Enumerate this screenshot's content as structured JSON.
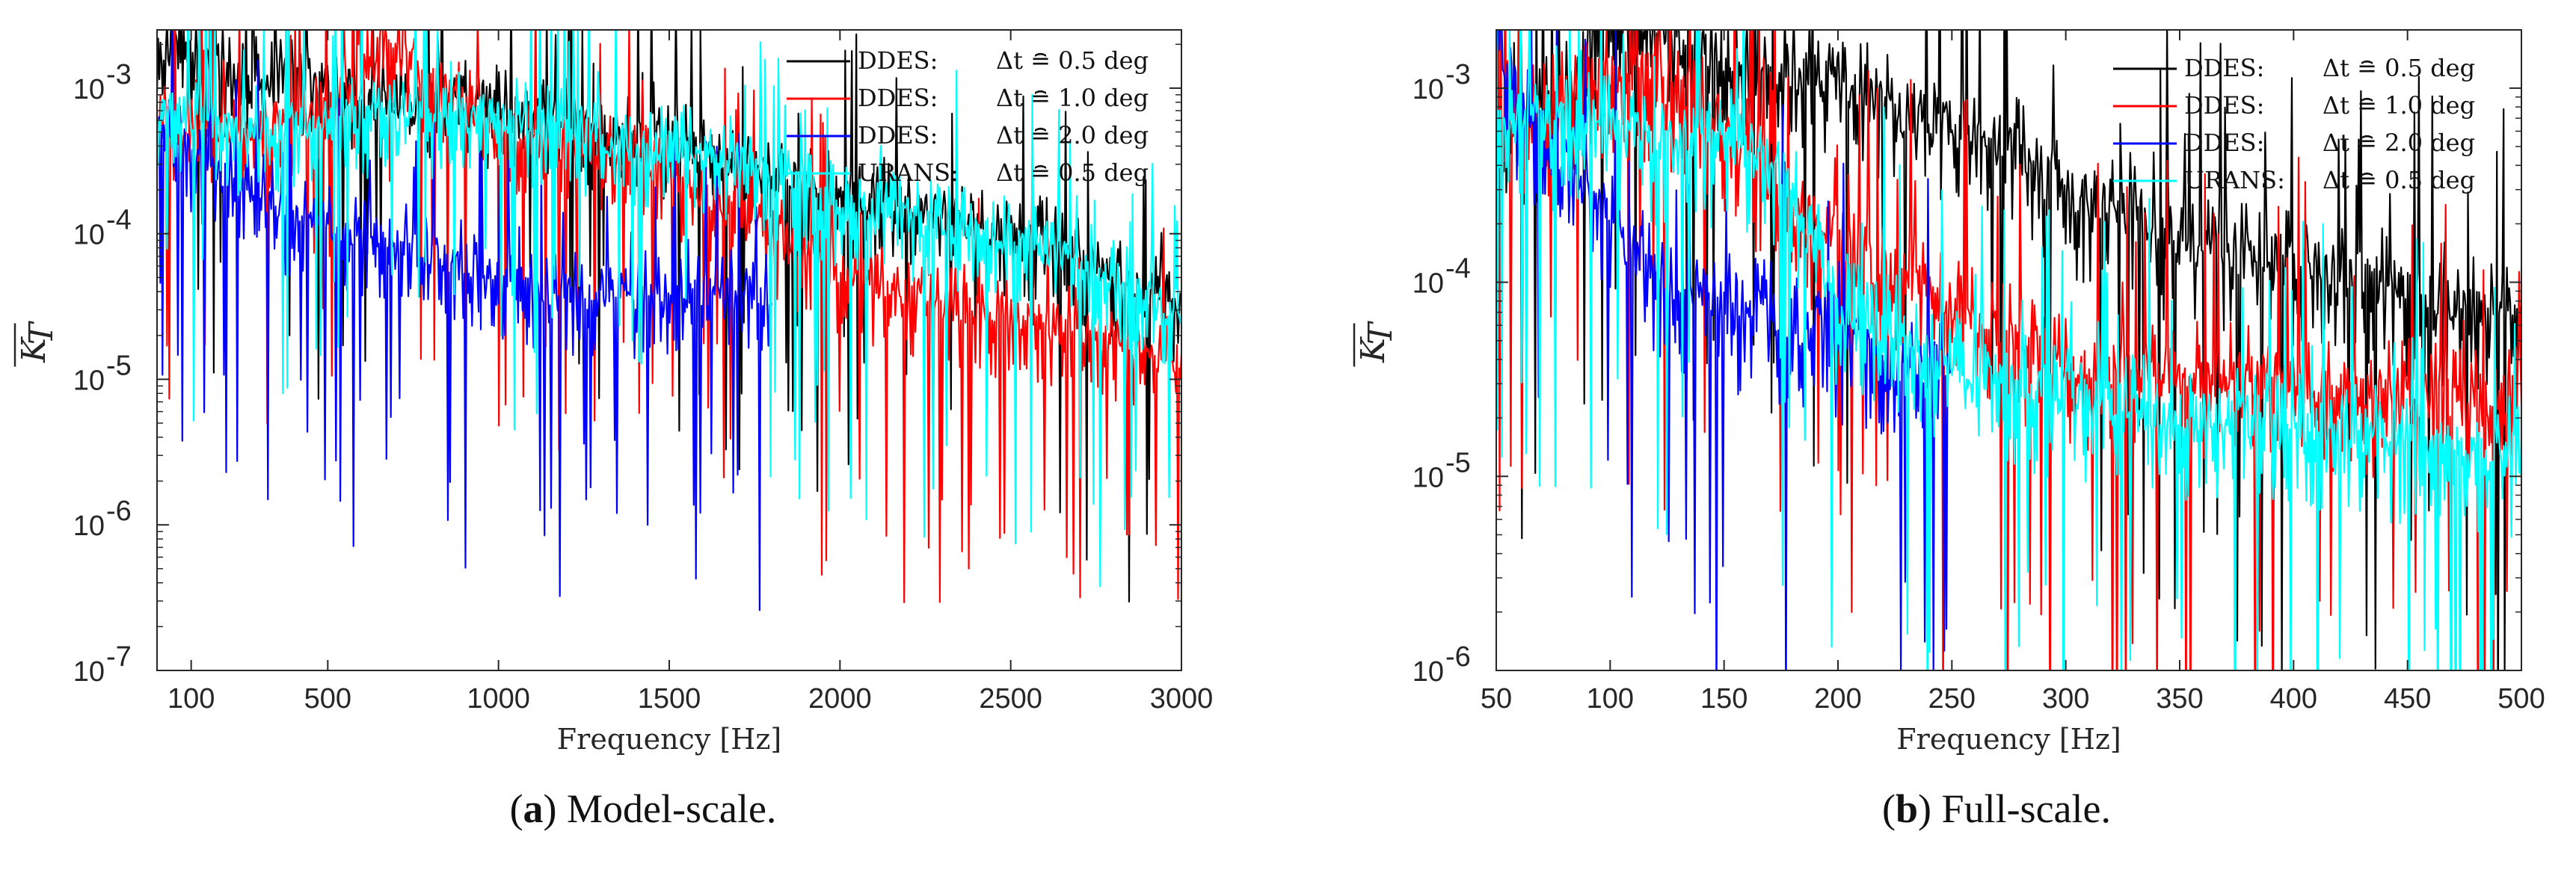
{
  "chart_data": [
    {
      "type": "line",
      "panel": "a",
      "caption_letter": "a",
      "caption_text": " Model-scale.",
      "xlabel": "Frequency [Hz]",
      "ylabel": "K_T (overline)",
      "yscale": "log",
      "xlim": [
        0,
        3000
      ],
      "ylim_exp": [
        -7,
        -2.6
      ],
      "xticks": [
        100,
        500,
        1000,
        1500,
        2000,
        2500,
        3000
      ],
      "yticks": [
        {
          "value": 1e-07,
          "label": "10",
          "exp": "-7"
        },
        {
          "value": 1e-06,
          "label": "10",
          "exp": "-6"
        },
        {
          "value": 1e-05,
          "label": "10",
          "exp": "-5"
        },
        {
          "value": 0.0001,
          "label": "10",
          "exp": "-4"
        },
        {
          "value": 0.001,
          "label": "10",
          "exp": "-3"
        }
      ],
      "legend_position": "top-right",
      "series": [
        {
          "name": "DDES:",
          "dt_label": "Δt ≘ 0.5 deg",
          "color": "#000000",
          "x": [
            0,
            50,
            100,
            200,
            300,
            400,
            500,
            600,
            800,
            1000,
            1200,
            1400,
            1600,
            1800,
            2000,
            2200,
            2400,
            2600,
            2800,
            3000
          ],
          "y": [
            0.0008,
            0.0022,
            0.0015,
            0.001,
            0.0009,
            0.0009,
            0.0009,
            0.0007,
            0.0006,
            0.0006,
            0.0005,
            0.00035,
            0.0003,
            0.0002,
            0.00015,
            0.00012,
            9e-05,
            7e-05,
            4e-05,
            2.5e-05
          ]
        },
        {
          "name": "DDES:",
          "dt_label": "Δt ≘ 1.0 deg",
          "color": "#ff0000",
          "x": [
            0,
            200,
            400,
            550,
            650,
            700,
            800,
            1000,
            1200,
            1400,
            1600,
            1800,
            2000,
            2200,
            2500,
            2800,
            3000
          ],
          "y": [
            0.0005,
            0.0004,
            0.0004,
            0.0006,
            0.0015,
            0.0015,
            0.0008,
            0.0004,
            0.0003,
            0.00025,
            0.00015,
            8e-05,
            4e-05,
            3e-05,
            2e-05,
            1.5e-05,
            1e-05
          ]
        },
        {
          "name": "DDES:",
          "dt_label": "Δt ≘ 2.0 deg",
          "color": "#0000ff",
          "x": [
            0,
            200,
            400,
            600,
            800,
            1000,
            1200,
            1400,
            1600,
            1800
          ],
          "y": [
            0.0004,
            0.0002,
            0.0001,
            8e-05,
            6e-05,
            4e-05,
            3e-05,
            3e-05,
            3e-05,
            3e-05
          ]
        },
        {
          "name": "URANS:",
          "dt_label": "Δt ≘ 0.5 deg",
          "color": "#00ffff",
          "x": [
            0,
            200,
            400,
            600,
            800,
            1000,
            1200,
            1400,
            1600,
            1800,
            2000,
            2200,
            2400,
            2600,
            2800,
            3000
          ],
          "y": [
            0.0006,
            0.0004,
            0.0004,
            0.0005,
            0.0005,
            0.0005,
            0.0004,
            0.0003,
            0.0003,
            0.0002,
            0.00012,
            0.0001,
            8e-05,
            6e-05,
            4e-05,
            2e-05
          ]
        }
      ]
    },
    {
      "type": "line",
      "panel": "b",
      "caption_letter": "b",
      "caption_text": " Full-scale.",
      "xlabel": "Frequency [Hz]",
      "ylabel": "K_T (overline)",
      "yscale": "log",
      "xlim": [
        50,
        500
      ],
      "ylim_exp": [
        -6,
        -2.7
      ],
      "xticks": [
        50,
        100,
        150,
        200,
        250,
        300,
        350,
        400,
        450,
        500
      ],
      "yticks": [
        {
          "value": 1e-06,
          "label": "10",
          "exp": "-6"
        },
        {
          "value": 1e-05,
          "label": "10",
          "exp": "-5"
        },
        {
          "value": 0.0001,
          "label": "10",
          "exp": "-4"
        },
        {
          "value": 0.001,
          "label": "10",
          "exp": "-3"
        }
      ],
      "legend_position": "top-right",
      "series": [
        {
          "name": "DDES:",
          "dt_label": "Δt ≘ 0.5 deg",
          "color": "#000000",
          "x": [
            50,
            75,
            100,
            125,
            150,
            175,
            200,
            225,
            250,
            275,
            300,
            325,
            350,
            400,
            450,
            500
          ],
          "y": [
            0.0004,
            0.0006,
            0.002,
            0.0015,
            0.0012,
            0.001,
            0.0009,
            0.0006,
            0.0005,
            0.0004,
            0.0002,
            0.0002,
            0.00012,
            0.0001,
            7e-05,
            5e-05
          ]
        },
        {
          "name": "DDES:",
          "dt_label": "Δt ≘ 1.0 deg",
          "color": "#ff0000",
          "x": [
            50,
            75,
            100,
            125,
            150,
            175,
            200,
            250,
            300,
            350,
            400,
            450,
            500
          ],
          "y": [
            0.0004,
            0.0006,
            0.001,
            0.0008,
            0.0005,
            0.0002,
            0.00012,
            6e-05,
            3e-05,
            2.5e-05,
            2.5e-05,
            2e-05,
            2e-05
          ]
        },
        {
          "name": "DDES:",
          "dt_label": "Δt ≘ 2.0 deg",
          "color": "#0000ff",
          "x": [
            50,
            75,
            100,
            125,
            150,
            175,
            200,
            225,
            250
          ],
          "y": [
            0.001,
            0.0004,
            0.00015,
            8e-05,
            6e-05,
            5e-05,
            4e-05,
            3e-05,
            3e-05
          ]
        },
        {
          "name": "URANS:",
          "dt_label": "Δt ≘ 0.5 deg",
          "color": "#00ffff",
          "x": [
            50,
            75,
            100,
            125,
            150,
            175,
            200,
            250,
            300,
            350,
            400,
            450,
            500
          ],
          "y": [
            0.0006,
            0.0005,
            0.0005,
            0.0004,
            0.0004,
            0.0003,
            6e-05,
            3e-05,
            2e-05,
            1.5e-05,
            1.5e-05,
            1.2e-05,
            1e-05
          ]
        }
      ]
    }
  ]
}
